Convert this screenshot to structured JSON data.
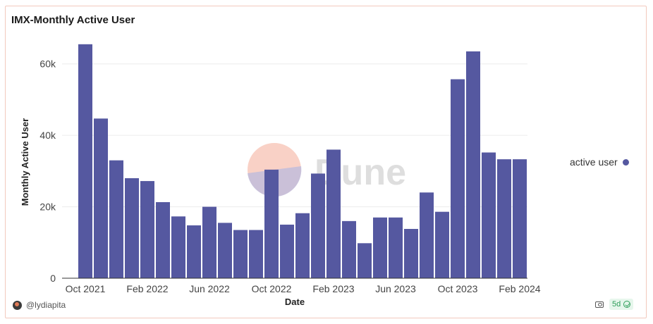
{
  "chart_data": {
    "type": "bar",
    "title": "IMX-Monthly Active User",
    "xlabel": "Date",
    "ylabel": "Monthly Active User",
    "ylim": [
      0,
      70000
    ],
    "yticks": [
      0,
      20000,
      40000,
      60000
    ],
    "ytick_labels": [
      "0",
      "20k",
      "40k",
      "60k"
    ],
    "grid": true,
    "legend_position": "right",
    "x_tick_labels": [
      "Oct 2021",
      "Feb 2022",
      "Jun 2022",
      "Oct 2022",
      "Feb 2023",
      "Jun 2023",
      "Oct 2023",
      "Feb 2024"
    ],
    "categories": [
      "Oct 2021",
      "Nov 2021",
      "Dec 2021",
      "Jan 2022",
      "Feb 2022",
      "Mar 2022",
      "Apr 2022",
      "May 2022",
      "Jun 2022",
      "Jul 2022",
      "Aug 2022",
      "Sep 2022",
      "Oct 2022",
      "Nov 2022",
      "Dec 2022",
      "Jan 2023",
      "Feb 2023",
      "Mar 2023",
      "Apr 2023",
      "May 2023",
      "Jun 2023",
      "Jul 2023",
      "Aug 2023",
      "Sep 2023",
      "Oct 2023",
      "Nov 2023",
      "Dec 2023",
      "Jan 2024",
      "Feb 2024"
    ],
    "series": [
      {
        "name": "active user",
        "color": "#5558a0",
        "values": [
          65500,
          44700,
          33000,
          28000,
          27200,
          21300,
          17300,
          14800,
          20000,
          15500,
          13500,
          13500,
          30400,
          15000,
          18200,
          29300,
          36000,
          16000,
          9800,
          17000,
          17000,
          13800,
          24000,
          18600,
          55700,
          63500,
          35200,
          33300,
          33300
        ]
      }
    ]
  },
  "watermark": {
    "text": "Dune"
  },
  "footer": {
    "username": "@lydiapita",
    "age_badge": "5d"
  }
}
